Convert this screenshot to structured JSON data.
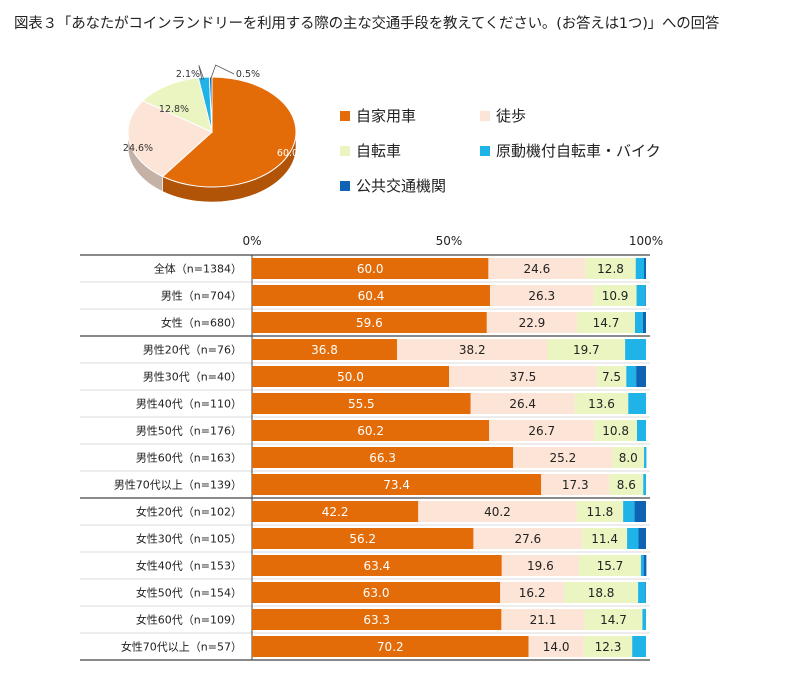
{
  "title": "図表３「あなたがコインランドリーを利用する際の主な交通手段を教えてください。(お答えは1つ)」への回答",
  "colors": [
    "#E36C09",
    "#FCE4D6",
    "#EBF5C2",
    "#1FB3E8",
    "#0E63B5"
  ],
  "chart_data": [
    {
      "type": "pie",
      "categories": [
        "自家用車",
        "徒歩",
        "自転車",
        "原動機付自転車・バイク",
        "公共交通機関"
      ],
      "values": [
        60.0,
        24.6,
        12.8,
        2.1,
        0.5
      ],
      "labels": [
        "60.0%",
        "24.6%",
        "12.8%",
        "2.1%",
        "0.5%"
      ]
    },
    {
      "type": "bar",
      "orientation": "horizontal",
      "stacked": true,
      "xlim": [
        0,
        100
      ],
      "xticks": [
        "0%",
        "50%",
        "100%"
      ],
      "categories": [
        "全体（n=1384）",
        "男性（n=704）",
        "女性（n=680）",
        "男性20代（n=76）",
        "男性30代（n=40）",
        "男性40代（n=110）",
        "男性50代（n=176）",
        "男性60代（n=163）",
        "男性70代以上（n=139）",
        "女性20代（n=102）",
        "女性30代（n=105）",
        "女性40代（n=153）",
        "女性50代（n=154）",
        "女性60代（n=109）",
        "女性70代以上（n=57）"
      ],
      "series": [
        {
          "name": "自家用車",
          "values": [
            60.0,
            60.4,
            59.6,
            36.8,
            50.0,
            55.5,
            60.2,
            66.3,
            73.4,
            42.2,
            56.2,
            63.4,
            63.0,
            63.3,
            70.2
          ]
        },
        {
          "name": "徒歩",
          "values": [
            24.6,
            26.3,
            22.9,
            38.2,
            37.5,
            26.4,
            26.7,
            25.2,
            17.3,
            40.2,
            27.6,
            19.6,
            16.2,
            21.1,
            14.0
          ]
        },
        {
          "name": "自転車",
          "values": [
            12.8,
            10.9,
            14.7,
            19.7,
            7.5,
            13.6,
            10.8,
            8.0,
            8.6,
            11.8,
            11.4,
            15.7,
            18.8,
            14.7,
            12.3
          ]
        },
        {
          "name": "原動機付自転車・バイク",
          "values": [
            2.1,
            2.3,
            2.0,
            5.3,
            2.5,
            4.5,
            2.3,
            0.6,
            0.7,
            2.9,
            2.9,
            0.7,
            1.9,
            0.9,
            3.5
          ]
        },
        {
          "name": "公共交通機関",
          "values": [
            0.5,
            0.1,
            0.8,
            0.0,
            2.5,
            0.0,
            0.0,
            0.0,
            0.0,
            2.9,
            1.9,
            0.7,
            0.1,
            0.0,
            0.0
          ]
        }
      ]
    }
  ]
}
